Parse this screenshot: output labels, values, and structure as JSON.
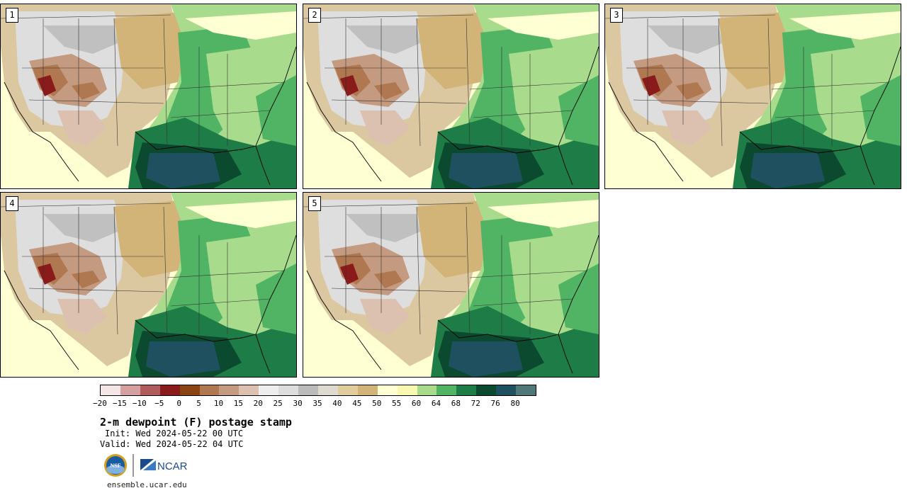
{
  "panels": [
    {
      "label": "1"
    },
    {
      "label": "2"
    },
    {
      "label": "3"
    },
    {
      "label": "4"
    },
    {
      "label": "5"
    }
  ],
  "colorbar": {
    "colors": [
      "#f4e6e6",
      "#d4a0a0",
      "#b05c5c",
      "#8b1a1a",
      "#8b4513",
      "#b07850",
      "#c49a80",
      "#dcc0b0",
      "#eeeeee",
      "#dddddd",
      "#bbbbbb",
      "#dedad0",
      "#e0cc9c",
      "#d2b478",
      "#ffffd4",
      "#f8f8b0",
      "#a8dc8c",
      "#50b464",
      "#1e7c46",
      "#0c4a30",
      "#1e5060",
      "#507878"
    ],
    "ticks": [
      "−20",
      "−15",
      "−10",
      "−5",
      "0",
      "5",
      "10",
      "15",
      "20",
      "25",
      "30",
      "35",
      "40",
      "45",
      "50",
      "55",
      "60",
      "64",
      "68",
      "72",
      "76",
      "80"
    ]
  },
  "title": "2-m dewpoint (F) postage stamp",
  "init": "Init: Wed 2024-05-22 00 UTC",
  "valid": "Valid: Wed 2024-05-22 04 UTC",
  "logos": {
    "nsf": "NSF",
    "ncar": "NCAR"
  },
  "url": "ensemble.ucar.edu"
}
